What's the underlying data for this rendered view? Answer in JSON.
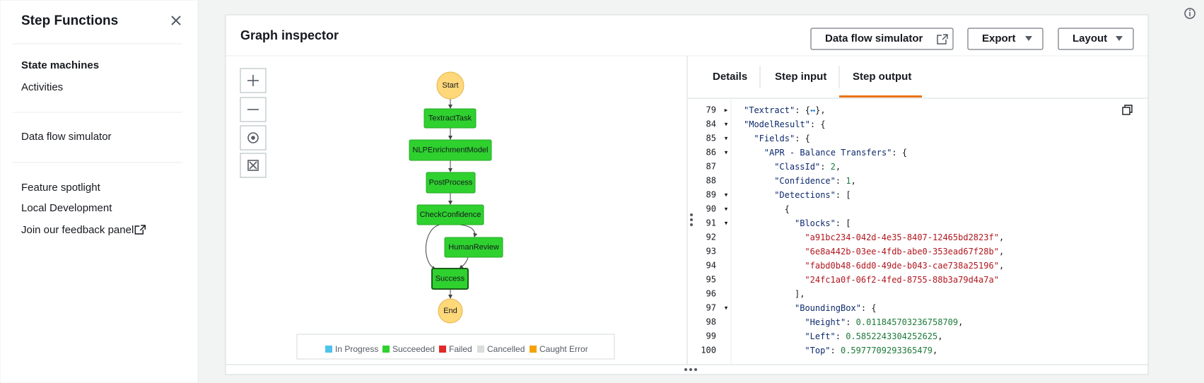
{
  "sidebar": {
    "title": "Step Functions",
    "nav": [
      [
        "State machines",
        "Activities"
      ],
      [
        "Data flow simulator"
      ],
      [
        "Feature spotlight",
        "Local Development",
        "Join our feedback panel"
      ]
    ]
  },
  "panel": {
    "title": "Graph inspector",
    "buttons": [
      "Data flow simulator",
      "Export",
      "Layout"
    ]
  },
  "graph": {
    "nodes": [
      "Start",
      "TextractTask",
      "NLPEnrichmentModel",
      "PostProcess",
      "CheckConfidence",
      "HumanReview",
      "Success",
      "End"
    ],
    "legend": [
      "In Progress",
      "Succeeded",
      "Failed",
      "Cancelled",
      "Caught Error"
    ]
  },
  "tabs": [
    "Details",
    "Step input",
    "Step output"
  ],
  "code": {
    "lines": [
      {
        "n": 79,
        "fold": "▸",
        "indent": 0,
        "parts": [
          [
            "k",
            "\"Textract\""
          ],
          [
            "p",
            ": {"
          ],
          [
            "l",
            "↔"
          ],
          [
            "p",
            "},"
          ]
        ]
      },
      {
        "n": 84,
        "fold": "▾",
        "indent": 0,
        "parts": [
          [
            "k",
            "\"ModelResult\""
          ],
          [
            "p",
            ": {"
          ]
        ]
      },
      {
        "n": 85,
        "fold": "▾",
        "indent": 1,
        "parts": [
          [
            "k",
            "\"Fields\""
          ],
          [
            "p",
            ": {"
          ]
        ]
      },
      {
        "n": 86,
        "fold": "▾",
        "indent": 2,
        "parts": [
          [
            "k",
            "\"APR - Balance Transfers\""
          ],
          [
            "p",
            ": {"
          ]
        ]
      },
      {
        "n": 87,
        "indent": 3,
        "parts": [
          [
            "k",
            "\"ClassId\""
          ],
          [
            "p",
            ": "
          ],
          [
            "d",
            "2"
          ],
          [
            "p",
            ","
          ]
        ]
      },
      {
        "n": 88,
        "indent": 3,
        "parts": [
          [
            "k",
            "\"Confidence\""
          ],
          [
            "p",
            ": "
          ],
          [
            "d",
            "1"
          ],
          [
            "p",
            ","
          ]
        ]
      },
      {
        "n": 89,
        "fold": "▾",
        "indent": 3,
        "parts": [
          [
            "k",
            "\"Detections\""
          ],
          [
            "p",
            ": ["
          ]
        ]
      },
      {
        "n": 90,
        "fold": "▾",
        "indent": 4,
        "parts": [
          [
            "p",
            "{"
          ]
        ]
      },
      {
        "n": 91,
        "fold": "▾",
        "indent": 5,
        "parts": [
          [
            "k",
            "\"Blocks\""
          ],
          [
            "p",
            ": ["
          ]
        ]
      },
      {
        "n": 92,
        "indent": 6,
        "parts": [
          [
            "s",
            "\"a91bc234-042d-4e35-8407-12465bd2823f\""
          ],
          [
            "p",
            ","
          ]
        ]
      },
      {
        "n": 93,
        "indent": 6,
        "parts": [
          [
            "s",
            "\"6e8a442b-03ee-4fdb-abe0-353ead67f28b\""
          ],
          [
            "p",
            ","
          ]
        ]
      },
      {
        "n": 94,
        "indent": 6,
        "parts": [
          [
            "s",
            "\"fabd0b48-6dd0-49de-b043-cae738a25196\""
          ],
          [
            "p",
            ","
          ]
        ]
      },
      {
        "n": 95,
        "indent": 6,
        "parts": [
          [
            "s",
            "\"24fc1a0f-06f2-4fed-8755-88b3a79d4a7a\""
          ]
        ]
      },
      {
        "n": 96,
        "indent": 5,
        "parts": [
          [
            "p",
            "],"
          ]
        ]
      },
      {
        "n": 97,
        "fold": "▾",
        "indent": 5,
        "parts": [
          [
            "k",
            "\"BoundingBox\""
          ],
          [
            "p",
            ": {"
          ]
        ]
      },
      {
        "n": 98,
        "indent": 6,
        "parts": [
          [
            "k",
            "\"Height\""
          ],
          [
            "p",
            ": "
          ],
          [
            "d",
            "0.011845703236758709"
          ],
          [
            "p",
            ","
          ]
        ]
      },
      {
        "n": 99,
        "indent": 6,
        "parts": [
          [
            "k",
            "\"Left\""
          ],
          [
            "p",
            ": "
          ],
          [
            "d",
            "0.5852243304252625"
          ],
          [
            "p",
            ","
          ]
        ]
      },
      {
        "n": 100,
        "indent": 6,
        "parts": [
          [
            "k",
            "\"Top\""
          ],
          [
            "p",
            ": "
          ],
          [
            "d",
            "0.5977709293365479"
          ],
          [
            "p",
            ","
          ]
        ]
      }
    ]
  }
}
